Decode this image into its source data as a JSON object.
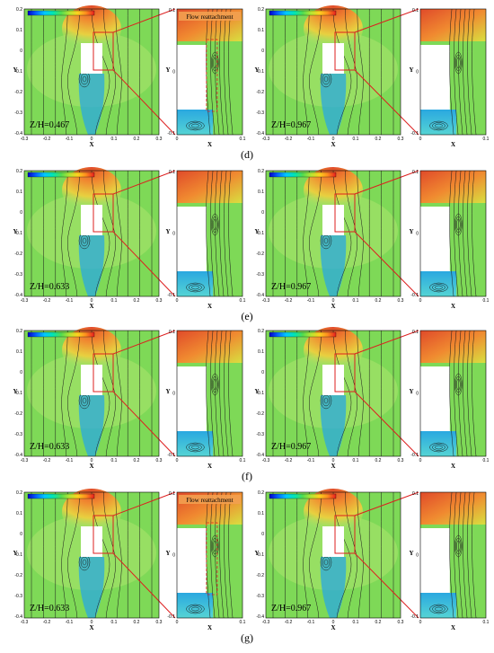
{
  "rows": [
    {
      "caption": "(d)",
      "left": {
        "zh": "Z/H=0.467",
        "annotation": "Flow reattachment"
      },
      "right": {
        "zh": "Z/H=0.967",
        "annotation": ""
      }
    },
    {
      "caption": "(e)",
      "left": {
        "zh": "Z/H=0.633",
        "annotation": ""
      },
      "right": {
        "zh": "Z/H=0.967",
        "annotation": ""
      }
    },
    {
      "caption": "(f)",
      "left": {
        "zh": "Z/H=0.633",
        "annotation": ""
      },
      "right": {
        "zh": "Z/H=0.967",
        "annotation": ""
      }
    },
    {
      "caption": "(g)",
      "left": {
        "zh": "Z/H=0.633",
        "annotation": "Flow reattachment"
      },
      "right": {
        "zh": "Z/H=0.967",
        "annotation": ""
      }
    }
  ],
  "axes": {
    "main": {
      "xlabel": "X",
      "ylabel": "Y",
      "xticks": [
        "-0.3",
        "-0.2",
        "-0.1",
        "0",
        "0.1",
        "0.2",
        "0.3"
      ],
      "yticks": [
        "0.2",
        "0.1",
        "0",
        "-0.1",
        "-0.2",
        "-0.3",
        "-0.4"
      ]
    },
    "zoom": {
      "xlabel": "X",
      "ylabel": "Y",
      "xticks": [
        "0",
        "0.1"
      ],
      "yticks": [
        "0.1",
        "0",
        "-0.1"
      ]
    }
  },
  "colors": {
    "field_green": "#7ed957",
    "field_light": "#a8e36a",
    "wake_cyan": "#55d4d4",
    "wake_blue": "#2aa8e0",
    "upstream_orange": "#f08a30",
    "upstream_red": "#e04a2a",
    "callout_red": "#dd1f1f",
    "streamline": "#1a1a1a"
  },
  "colorbar": [
    "#0000c8",
    "#0064ff",
    "#00c8ff",
    "#00e6b4",
    "#50dc50",
    "#b4e632",
    "#ffd21e",
    "#ff8c1e",
    "#e61e1e"
  ]
}
